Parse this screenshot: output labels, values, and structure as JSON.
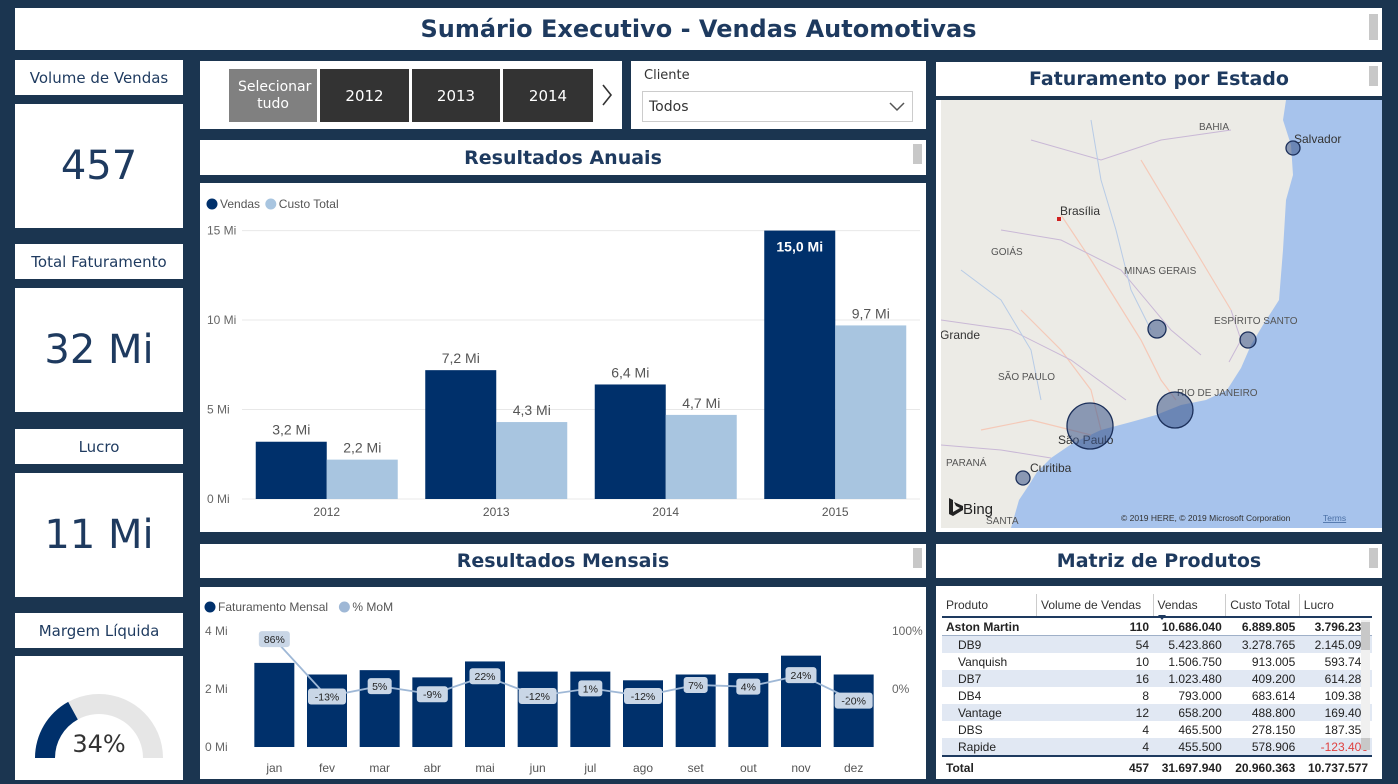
{
  "title": "Sumário Executivo - Vendas Automotivas",
  "kpis": {
    "volume_label": "Volume de Vendas",
    "volume_value": "457",
    "faturamento_label": "Total Faturamento",
    "faturamento_value": "32 Mi",
    "lucro_label": "Lucro",
    "lucro_value": "11 Mi",
    "margem_label": "Margem Líquida",
    "margem_value": "34%",
    "margem_fraction": 0.34
  },
  "year_slicer": {
    "select_all": "Selecionar tudo",
    "years": [
      "2012",
      "2013",
      "2014"
    ],
    "next_icon": "chevron-right-icon"
  },
  "client_slicer": {
    "label": "Cliente",
    "value": "Todos",
    "dropdown_icon": "chevron-down-icon"
  },
  "annual": {
    "header": "Resultados Anuais",
    "chart_data": {
      "type": "bar",
      "categories": [
        "2012",
        "2013",
        "2014",
        "2015"
      ],
      "series": [
        {
          "name": "Vendas",
          "values": [
            3.2,
            7.2,
            6.4,
            15.0
          ],
          "labels": [
            "3,2 Mi",
            "7,2 Mi",
            "6,4 Mi",
            "15,0 Mi"
          ],
          "color": "#00306b"
        },
        {
          "name": "Custo Total",
          "values": [
            2.2,
            4.3,
            4.7,
            9.7
          ],
          "labels": [
            "2,2 Mi",
            "4,3 Mi",
            "4,7 Mi",
            "9,7 Mi"
          ],
          "color": "#a8c5e0"
        }
      ],
      "yticks": [
        "0 Mi",
        "5 Mi",
        "10 Mi",
        "15 Mi"
      ],
      "ytick_values": [
        0,
        5,
        10,
        15
      ],
      "ylim": [
        0,
        15.2
      ],
      "legend": "top-left",
      "grid": true
    }
  },
  "map": {
    "header": "Faturamento por Estado",
    "labels": [
      "BAHIA",
      "Salvador",
      "Brasília",
      "GOIÁS",
      "MINAS GERAIS",
      "ESPÍRITO SANTO",
      "Grande",
      "SÃO PAULO",
      "RIO DE JANEIRO",
      "São Paulo",
      "PARANÁ",
      "Curitiba",
      "SANTA"
    ],
    "attribution": "© 2019 HERE, © 2019 Microsoft Corporation",
    "terms": "Terms",
    "bing": "Bing",
    "land_color": "#ecebe6",
    "sea_color": "#a7c3ec",
    "bubble_color": "#3b5488"
  },
  "monthly": {
    "header": "Resultados Mensais",
    "chart_data": {
      "type": "bar",
      "categories": [
        "jan",
        "fev",
        "mar",
        "abr",
        "mai",
        "jun",
        "jul",
        "ago",
        "set",
        "out",
        "nov",
        "dez"
      ],
      "series": [
        {
          "name": "Faturamento Mensal",
          "values": [
            2.9,
            2.5,
            2.65,
            2.4,
            2.95,
            2.6,
            2.6,
            2.3,
            2.5,
            2.55,
            3.15,
            2.5
          ],
          "color": "#00306b"
        },
        {
          "name": "% MoM",
          "values": [
            86,
            -13,
            5,
            -9,
            22,
            -12,
            1,
            -12,
            7,
            4,
            24,
            -20
          ],
          "labels": [
            "86%",
            "-13%",
            "5%",
            "-9%",
            "22%",
            "-12%",
            "1%",
            "-12%",
            "7%",
            "4%",
            "24%",
            "-20%"
          ],
          "color": "#9fb8d6"
        }
      ],
      "yticks_left": [
        "0 Mi",
        "2 Mi",
        "4 Mi"
      ],
      "ytick_values_left": [
        0,
        2,
        4
      ],
      "yticks_right": [
        "0%",
        "100%"
      ],
      "ytick_values_right": [
        0,
        100
      ],
      "ylim_left": [
        0,
        4
      ],
      "ylim_right": [
        -100,
        100
      ],
      "legend": "top-left"
    }
  },
  "matrix": {
    "header": "Matriz de Produtos",
    "columns": [
      "Produto",
      "Volume de Vendas",
      "Vendas",
      "Custo Total",
      "Lucro"
    ],
    "group": [
      "Aston Martin",
      "110",
      "10.686.040",
      "6.889.805",
      "3.796.235"
    ],
    "rows": [
      [
        "DB9",
        "54",
        "5.423.860",
        "3.278.765",
        "2.145.095"
      ],
      [
        "Vanquish",
        "10",
        "1.506.750",
        "913.005",
        "593.745"
      ],
      [
        "DB7",
        "16",
        "1.023.480",
        "409.200",
        "614.280"
      ],
      [
        "DB4",
        "8",
        "793.000",
        "683.614",
        "109.386"
      ],
      [
        "Vantage",
        "12",
        "658.200",
        "488.800",
        "169.400"
      ],
      [
        "DBS",
        "4",
        "465.500",
        "278.150",
        "187.350"
      ],
      [
        "Rapide",
        "4",
        "455.500",
        "578.906",
        "-123.406"
      ]
    ],
    "total": [
      "Total",
      "457",
      "31.697.940",
      "20.960.363",
      "10.737.577"
    ]
  }
}
